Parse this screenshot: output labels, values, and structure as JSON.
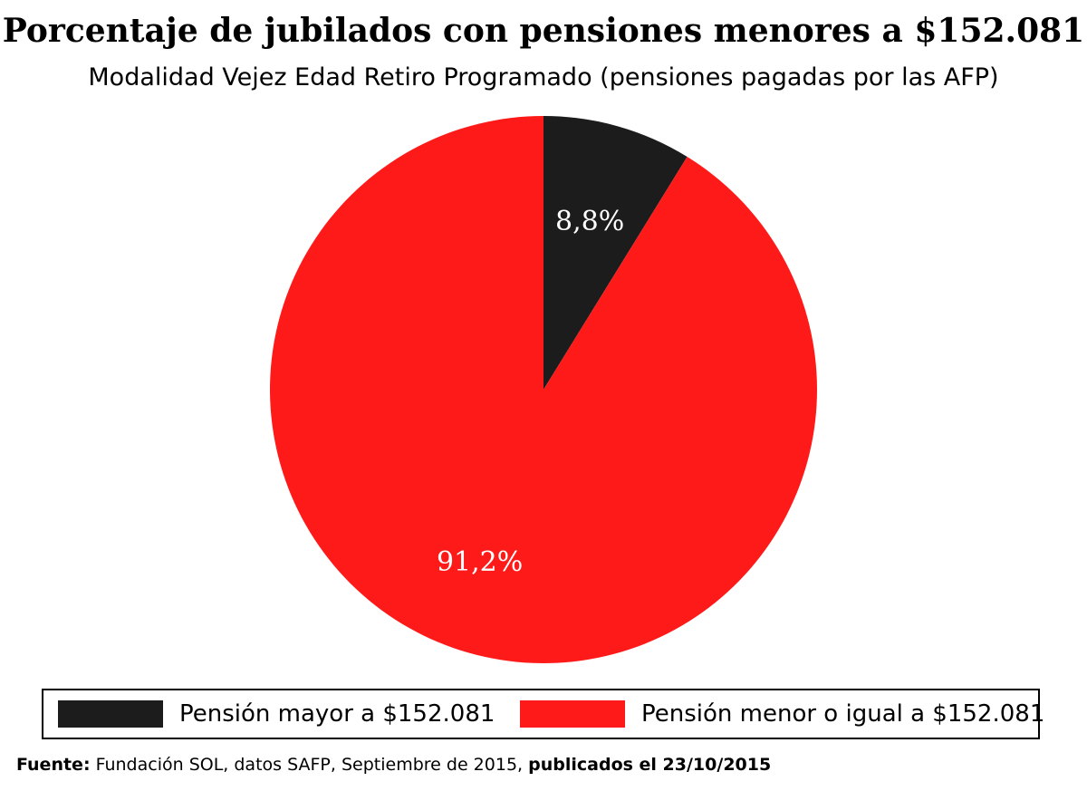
{
  "chart_data": {
    "type": "pie",
    "title": "Porcentaje de jubilados con pensiones menores a $152.081",
    "subtitle": "Modalidad Vejez Edad Retiro Programado (pensiones pagadas por las AFP)",
    "slices": [
      {
        "label": "Pensión mayor a $152.081",
        "value": 8.8,
        "data_label": "8,8%",
        "color": "#1c1c1c"
      },
      {
        "label": "Pensión menor o igual a $152.081",
        "value": 91.2,
        "data_label": "91,2%",
        "color": "#ff1a1a"
      }
    ],
    "legend_placement": "bottom"
  },
  "footer": {
    "source_label": "Fuente:",
    "source_text": " Fundación SOL, datos SAFP, Septiembre de 2015, ",
    "published": "publicados el 23/10/2015"
  }
}
